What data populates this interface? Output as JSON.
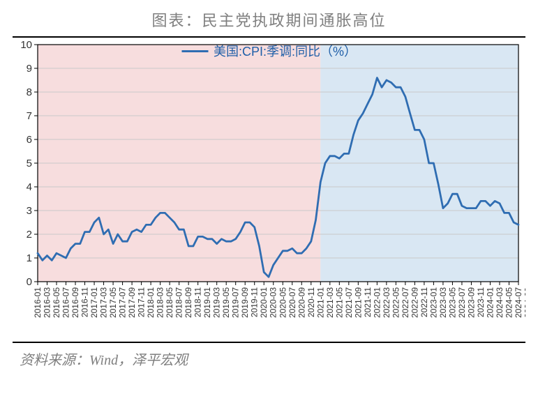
{
  "title": "图表：民主党执政期间通胀高位",
  "source": "资料来源：Wind，泽平宏观",
  "chart": {
    "type": "line",
    "legend_label": "美国:CPI:季调:同比（%）",
    "line_color": "#2f6db2",
    "line_width": 2.8,
    "band_left_color": "#f7ddde",
    "band_right_color": "#d9e7f3",
    "band_opacity": 1.0,
    "background_color": "#ffffff",
    "border_color": "#000000",
    "grid_color": "#c9c9c9",
    "ylim": [
      0,
      10
    ],
    "ytick_step": 1,
    "x_labels": [
      "2016-01",
      "2016-03",
      "2016-05",
      "2016-07",
      "2016-09",
      "2016-11",
      "2017-01",
      "2017-03",
      "2017-05",
      "2017-07",
      "2017-09",
      "2017-11",
      "2018-01",
      "2018-03",
      "2018-05",
      "2018-07",
      "2018-09",
      "2018-11",
      "2019-01",
      "2019-03",
      "2019-05",
      "2019-07",
      "2019-09",
      "2019-11",
      "2020-01",
      "2020-03",
      "2020-05",
      "2020-07",
      "2020-09",
      "2020-11",
      "2021-01",
      "2021-03",
      "2021-05",
      "2021-07",
      "2021-09",
      "2021-11",
      "2022-01",
      "2022-03",
      "2022-05",
      "2022-07",
      "2022-09",
      "2022-11",
      "2023-01",
      "2023-03",
      "2023-05",
      "2023-07",
      "2023-09",
      "2023-11",
      "2024-01",
      "2024-03",
      "2024-05",
      "2024-07",
      "2024-09"
    ],
    "band_split_x": "2021-01",
    "values": [
      1.2,
      0.9,
      1.1,
      0.9,
      1.2,
      1.1,
      1.0,
      1.4,
      1.6,
      1.6,
      2.1,
      2.1,
      2.5,
      2.7,
      2.0,
      2.2,
      1.6,
      2.0,
      1.7,
      1.7,
      2.1,
      2.2,
      2.1,
      2.4,
      2.4,
      2.7,
      2.9,
      2.9,
      2.7,
      2.5,
      2.2,
      2.2,
      1.5,
      1.5,
      1.9,
      1.9,
      1.8,
      1.8,
      1.6,
      1.8,
      1.7,
      1.7,
      1.8,
      2.1,
      2.5,
      2.5,
      2.3,
      1.5,
      0.4,
      0.2,
      0.7,
      1.0,
      1.3,
      1.3,
      1.4,
      1.2,
      1.2,
      1.4,
      1.7,
      2.6,
      4.2,
      5.0,
      5.3,
      5.3,
      5.2,
      5.4,
      5.4,
      6.2,
      6.8,
      7.1,
      7.5,
      7.9,
      8.6,
      8.2,
      8.5,
      8.4,
      8.2,
      8.2,
      7.8,
      7.1,
      6.4,
      6.4,
      6.0,
      5.0,
      5.0,
      4.1,
      3.1,
      3.3,
      3.7,
      3.7,
      3.2,
      3.1,
      3.1,
      3.1,
      3.4,
      3.4,
      3.2,
      3.4,
      3.3,
      2.9,
      2.9,
      2.5,
      2.4
    ]
  }
}
